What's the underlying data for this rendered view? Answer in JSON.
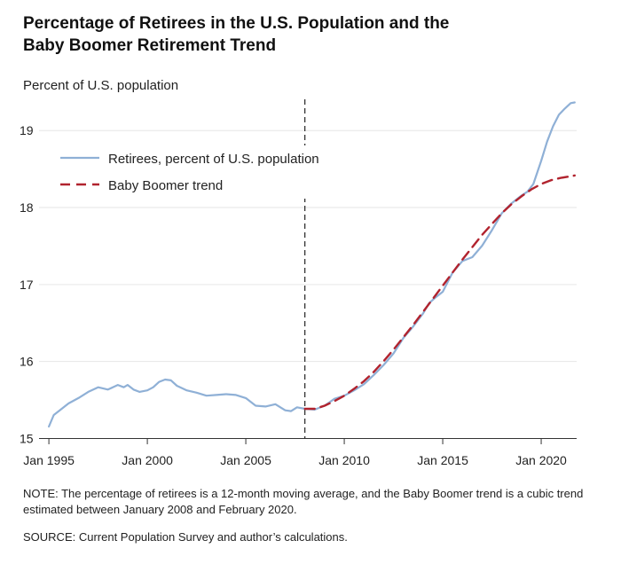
{
  "title_line1": "Percentage of Retirees in the U.S. Population and the",
  "title_line2": "Baby Boomer Retirement Trend",
  "note": "NOTE: The percentage of retirees is a 12-month moving average, and the Baby Boomer trend is a cubic trend estimated between January 2008 and February 2020.",
  "source": "SOURCE: Current Population Survey and author’s calculations.",
  "colors": {
    "retirees": "#8fb0d6",
    "trend": "#b1232e",
    "axis": "#333333",
    "grid": "#e6e6e6"
  },
  "chart_data": {
    "type": "line",
    "title": "Percentage of Retirees in the U.S. Population and the Baby Boomer Retirement Trend",
    "ylabel": "Percent of U.S. population",
    "xlabel": "",
    "ylim": [
      15,
      19.4
    ],
    "xlim": [
      1994.5,
      2021.8
    ],
    "yticks": [
      15,
      16,
      17,
      18,
      19
    ],
    "xticks": [
      {
        "value": 1995,
        "label": "Jan 1995"
      },
      {
        "value": 2000,
        "label": "Jan 2000"
      },
      {
        "value": 2005,
        "label": "Jan 2005"
      },
      {
        "value": 2010,
        "label": "Jan 2010"
      },
      {
        "value": 2015,
        "label": "Jan 2015"
      },
      {
        "value": 2020,
        "label": "Jan 2020"
      }
    ],
    "vertical_line": 2008,
    "legend_position": "top-left",
    "series": [
      {
        "name": "Retirees, percent of U.S. population",
        "style": "solid",
        "x": [
          1995.0,
          1995.25,
          1995.5,
          1996.0,
          1996.5,
          1997.0,
          1997.5,
          1998.0,
          1998.5,
          1998.8,
          1999.0,
          1999.3,
          1999.6,
          2000.0,
          2000.3,
          2000.6,
          2000.9,
          2001.2,
          2001.5,
          2002.0,
          2002.5,
          2003.0,
          2003.5,
          2004.0,
          2004.5,
          2005.0,
          2005.5,
          2006.0,
          2006.5,
          2007.0,
          2007.3,
          2007.6,
          2008.0,
          2008.5,
          2009.0,
          2009.5,
          2010.0,
          2010.5,
          2011.0,
          2011.5,
          2012.0,
          2012.5,
          2013.0,
          2013.5,
          2014.0,
          2014.3,
          2014.6,
          2015.0,
          2015.5,
          2016.0,
          2016.5,
          2017.0,
          2017.5,
          2018.0,
          2018.5,
          2019.0,
          2019.3,
          2019.6,
          2020.0,
          2020.3,
          2020.6,
          2020.9,
          2021.2,
          2021.5,
          2021.7
        ],
        "values": [
          15.15,
          15.3,
          15.35,
          15.45,
          15.52,
          15.6,
          15.66,
          15.63,
          15.69,
          15.66,
          15.69,
          15.63,
          15.6,
          15.62,
          15.66,
          15.73,
          15.76,
          15.75,
          15.68,
          15.62,
          15.59,
          15.55,
          15.56,
          15.57,
          15.56,
          15.52,
          15.42,
          15.41,
          15.44,
          15.36,
          15.35,
          15.4,
          15.38,
          15.37,
          15.42,
          15.51,
          15.55,
          15.62,
          15.7,
          15.82,
          15.95,
          16.1,
          16.3,
          16.45,
          16.62,
          16.75,
          16.82,
          16.9,
          17.15,
          17.3,
          17.35,
          17.5,
          17.7,
          17.92,
          18.05,
          18.15,
          18.2,
          18.3,
          18.6,
          18.85,
          19.05,
          19.2,
          19.28,
          19.35,
          19.36
        ]
      },
      {
        "name": "Baby Boomer trend",
        "style": "dashed",
        "x": [
          2008.0,
          2008.5,
          2009.0,
          2009.5,
          2010.0,
          2010.5,
          2011.0,
          2011.5,
          2012.0,
          2012.5,
          2013.0,
          2013.5,
          2014.0,
          2014.5,
          2015.0,
          2015.5,
          2016.0,
          2016.5,
          2017.0,
          2017.5,
          2018.0,
          2018.5,
          2019.0,
          2019.5,
          2020.0,
          2020.5,
          2021.0,
          2021.5,
          2021.7
        ],
        "values": [
          15.38,
          15.38,
          15.42,
          15.48,
          15.55,
          15.64,
          15.74,
          15.86,
          16.0,
          16.15,
          16.31,
          16.47,
          16.64,
          16.81,
          16.98,
          17.15,
          17.32,
          17.48,
          17.64,
          17.78,
          17.92,
          18.04,
          18.14,
          18.23,
          18.3,
          18.35,
          18.38,
          18.4,
          18.41
        ]
      }
    ]
  }
}
